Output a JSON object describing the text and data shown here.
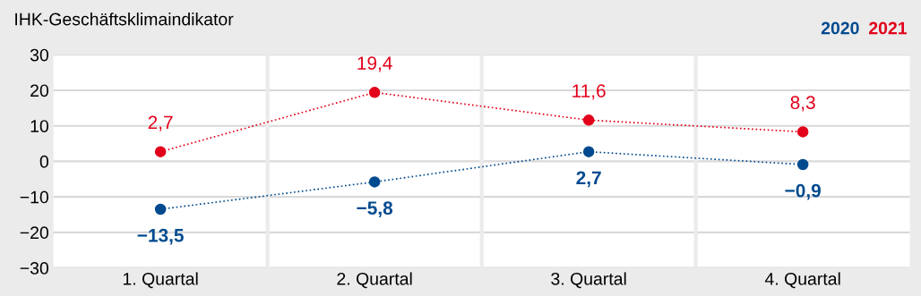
{
  "chart_data": {
    "type": "line",
    "title": "IHK-Geschäftsklimaindikator",
    "categories": [
      "1. Quartal",
      "2. Quartal",
      "3. Quartal",
      "4. Quartal"
    ],
    "series": [
      {
        "name": "2020",
        "color": "#004a8f",
        "values": [
          -13.5,
          -5.8,
          2.7,
          -0.9
        ],
        "value_labels": [
          "−13,5",
          "−5,8",
          "2,7",
          "−0,9"
        ]
      },
      {
        "name": "2021",
        "color": "#e2001a",
        "values": [
          2.7,
          19.4,
          11.6,
          8.3
        ],
        "value_labels": [
          "2,7",
          "19,4",
          "11,6",
          "8,3"
        ]
      }
    ],
    "ylim": [
      -30,
      30
    ],
    "yticks": [
      {
        "value": -30,
        "label": "−30"
      },
      {
        "value": -20,
        "label": "−20"
      },
      {
        "value": -10,
        "label": "−10"
      },
      0,
      10,
      20,
      30
    ],
    "grid": "y",
    "legend": "top right",
    "marker": "circle",
    "line_style": "dotted"
  }
}
